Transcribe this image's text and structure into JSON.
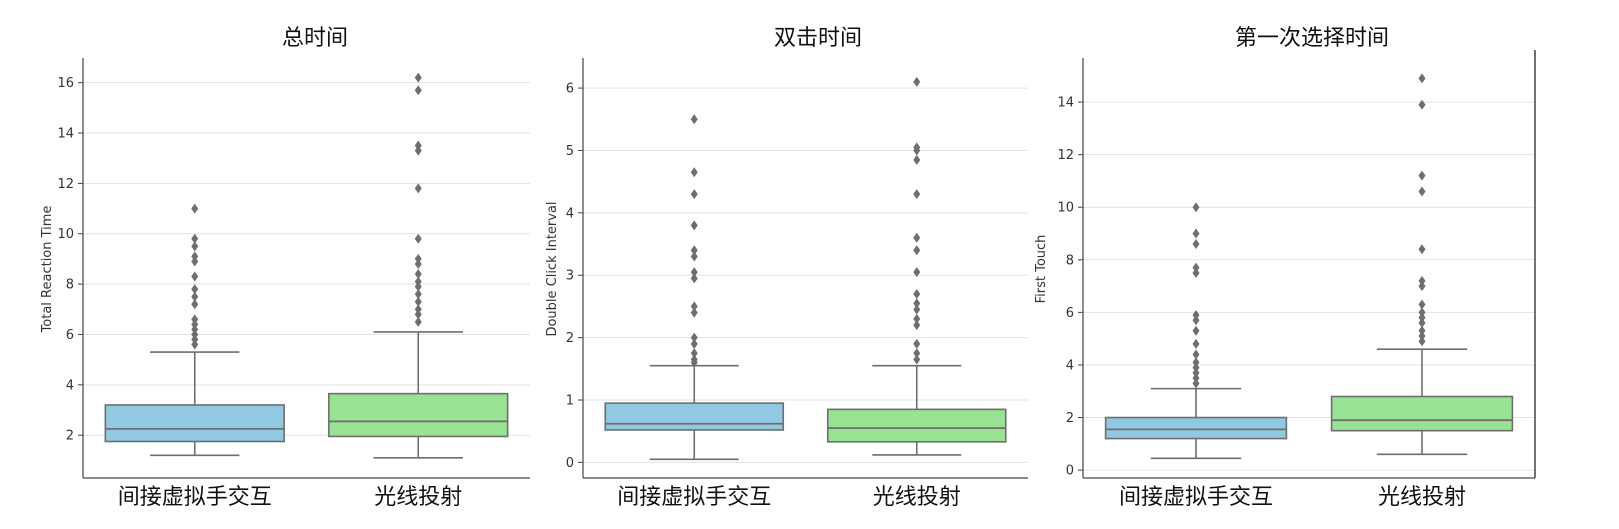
{
  "chart_data": [
    {
      "type": "box",
      "title": "总时间",
      "xlabel": "",
      "ylabel": "Total Reaction Time",
      "ylim": [
        0.3,
        16.9
      ],
      "yticks": [
        2,
        4,
        6,
        8,
        10,
        12,
        14,
        16
      ],
      "grid": true,
      "categories": [
        "间接虚拟手交互",
        "光线投射"
      ],
      "boxes": [
        {
          "category": "间接虚拟手交互",
          "color": "#92c9e2",
          "whisker_low": 1.2,
          "q1": 1.75,
          "median": 2.25,
          "q3": 3.2,
          "whisker_high": 5.3,
          "outliers": [
            5.6,
            5.8,
            6.0,
            6.2,
            6.4,
            6.6,
            7.2,
            7.5,
            7.8,
            8.3,
            8.9,
            9.1,
            9.5,
            9.8,
            11.0
          ]
        },
        {
          "category": "光线投射",
          "color": "#98e294",
          "whisker_low": 1.1,
          "q1": 1.95,
          "median": 2.55,
          "q3": 3.65,
          "whisker_high": 6.1,
          "outliers": [
            6.5,
            6.8,
            7.0,
            7.3,
            7.6,
            7.9,
            8.1,
            8.4,
            8.8,
            9.0,
            9.8,
            11.8,
            13.3,
            13.5,
            15.7,
            16.2
          ]
        }
      ]
    },
    {
      "type": "box",
      "title": "双击时间",
      "xlabel": "",
      "ylabel": "Double Click Interval",
      "ylim": [
        -0.25,
        6.45
      ],
      "yticks": [
        0,
        1,
        2,
        3,
        4,
        5,
        6
      ],
      "grid": true,
      "categories": [
        "间接虚拟手交互",
        "光线投射"
      ],
      "boxes": [
        {
          "category": "间接虚拟手交互",
          "color": "#92c9e2",
          "whisker_low": 0.05,
          "q1": 0.52,
          "median": 0.62,
          "q3": 0.95,
          "whisker_high": 1.55,
          "outliers": [
            1.6,
            1.65,
            1.75,
            1.9,
            2.0,
            2.4,
            2.5,
            2.95,
            3.05,
            3.3,
            3.4,
            3.8,
            4.3,
            4.65,
            5.5
          ]
        },
        {
          "category": "光线投射",
          "color": "#98e294",
          "whisker_low": 0.12,
          "q1": 0.33,
          "median": 0.55,
          "q3": 0.85,
          "whisker_high": 1.55,
          "outliers": [
            1.65,
            1.75,
            1.9,
            2.2,
            2.3,
            2.45,
            2.55,
            2.7,
            3.05,
            3.4,
            3.6,
            4.3,
            4.85,
            5.0,
            5.05,
            6.1
          ]
        }
      ]
    },
    {
      "type": "box",
      "title": "第一次选择时间",
      "xlabel": "",
      "ylabel": "First Touch",
      "ylim": [
        -0.3,
        15.6
      ],
      "yticks": [
        0,
        2,
        4,
        6,
        8,
        10,
        12,
        14
      ],
      "grid": true,
      "categories": [
        "间接虚拟手交互",
        "光线投射"
      ],
      "boxes": [
        {
          "category": "间接虚拟手交互",
          "color": "#92c9e2",
          "whisker_low": 0.45,
          "q1": 1.2,
          "median": 1.55,
          "q3": 2.0,
          "whisker_high": 3.1,
          "outliers": [
            3.3,
            3.5,
            3.7,
            3.9,
            4.1,
            4.4,
            4.8,
            5.3,
            5.7,
            5.9,
            7.5,
            7.7,
            8.6,
            9.0,
            10.0
          ]
        },
        {
          "category": "光线投射",
          "color": "#98e294",
          "whisker_low": 0.6,
          "q1": 1.5,
          "median": 1.9,
          "q3": 2.8,
          "whisker_high": 4.6,
          "outliers": [
            4.9,
            5.1,
            5.3,
            5.6,
            5.8,
            6.0,
            6.3,
            7.0,
            7.2,
            8.4,
            10.6,
            11.2,
            13.9,
            14.9
          ]
        }
      ]
    }
  ]
}
